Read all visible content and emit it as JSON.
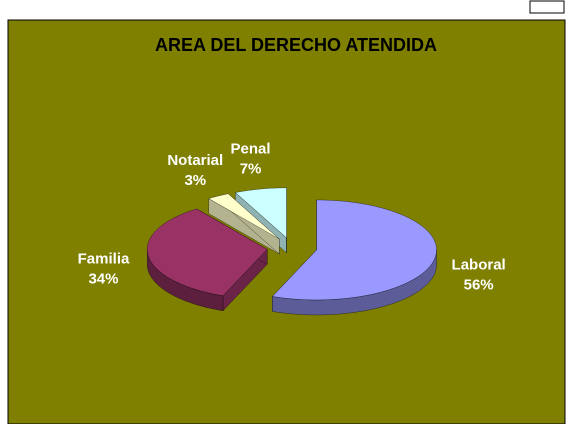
{
  "chart_data": {
    "type": "pie",
    "title": "AREA DEL DERECHO ATENDIDA",
    "categories": [
      "Laboral",
      "Familia",
      "Notarial",
      "Penal"
    ],
    "values": [
      56,
      34,
      3,
      7
    ],
    "value_labels": [
      "56%",
      "34%",
      "3%",
      "7%"
    ],
    "colors": [
      "#9999ff",
      "#993366",
      "#ffffcc",
      "#ccffff"
    ],
    "background": "#808000"
  }
}
